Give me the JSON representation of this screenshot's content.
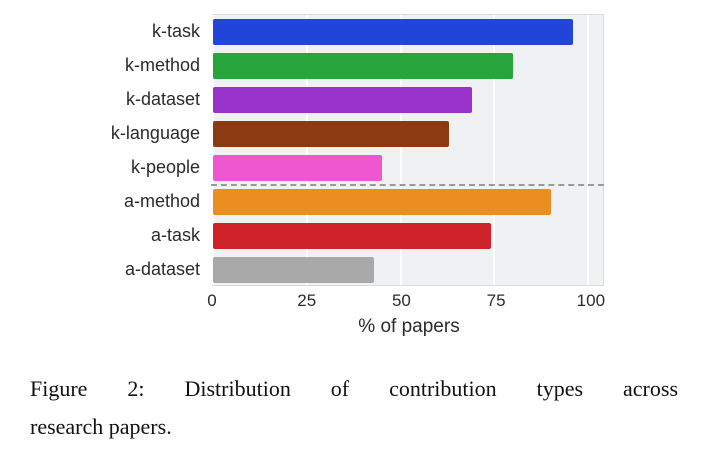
{
  "chart_data": {
    "type": "bar",
    "orientation": "horizontal",
    "categories": [
      "k-task",
      "k-method",
      "k-dataset",
      "k-language",
      "k-people",
      "a-method",
      "a-task",
      "a-dataset"
    ],
    "values": [
      96,
      80,
      69,
      63,
      45,
      90,
      74,
      43
    ],
    "colors": [
      "#2145d8",
      "#25a53c",
      "#9933cc",
      "#8a3b12",
      "#ef57d0",
      "#ea8f1f",
      "#cd2329",
      "#a9a9a9"
    ],
    "title": "",
    "xlabel": "% of papers",
    "ylabel": "",
    "xlim": [
      0,
      104
    ],
    "xticks": [
      0,
      25,
      50,
      75,
      100
    ],
    "grid": true,
    "gridline_color": "#ffffff",
    "plot_background": "#f0f1f3",
    "separator_after_index": 4,
    "separator_style": "dashed gray line between k-people and a-method",
    "legend": "none"
  },
  "caption": {
    "line1": "Figure 2: Distribution of contribution types across",
    "line2": "research papers."
  }
}
